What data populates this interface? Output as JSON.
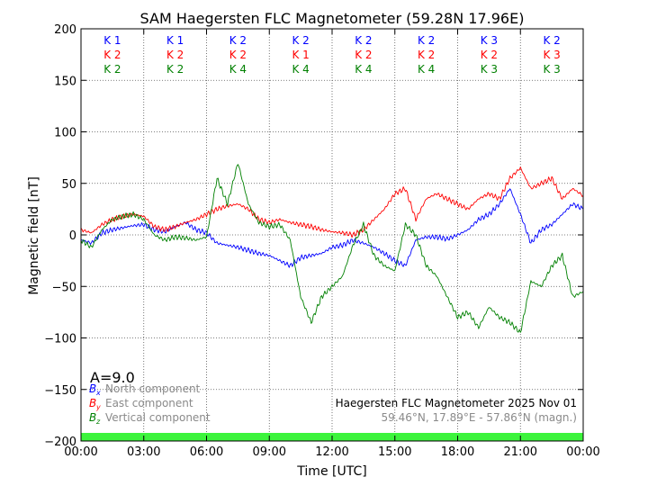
{
  "chart_data": {
    "type": "line",
    "title": "SAM Haegersten FLC Magnetometer (59.28N 17.96E)",
    "xlabel": "Time [UTC]",
    "ylabel": "Magnetic field [nT]",
    "xlim": [
      0,
      24
    ],
    "ylim": [
      -200,
      200
    ],
    "x_tick_labels": [
      "00:00",
      "03:00",
      "06:00",
      "09:00",
      "12:00",
      "15:00",
      "18:00",
      "21:00",
      "00:00"
    ],
    "y_tick_labels": [
      "200",
      "150",
      "100",
      "50",
      "0",
      "−50",
      "−100",
      "−150",
      "−200"
    ],
    "grid": true,
    "k_indices": {
      "labels_x": [
        "K 1",
        "K 1",
        "K 2",
        "K 2",
        "K 2",
        "K 2",
        "K 3",
        "K 2"
      ],
      "labels_y": [
        "K 2",
        "K 2",
        "K 2",
        "K 1",
        "K 2",
        "K 2",
        "K 2",
        "K 3"
      ],
      "labels_z": [
        "K 2",
        "K 2",
        "K 4",
        "K 4",
        "K 4",
        "K 4",
        "K 3",
        "K 3"
      ]
    },
    "a_index_label": "A=9.0",
    "legend": {
      "placement": "bottom-left",
      "entries": [
        {
          "symbol": "B",
          "sub": "x",
          "text": "North component"
        },
        {
          "symbol": "B",
          "sub": "y",
          "text": "East component"
        },
        {
          "symbol": "B",
          "sub": "z",
          "text": "Vertical component"
        }
      ]
    },
    "info_lines": [
      "Haegersten FLC Magnetometer 2025 Nov 01",
      "59.46°N, 17.89°E - 57.86°N (magn.)"
    ],
    "status_band": {
      "from": -200,
      "to": -192,
      "color": "#3cf43c"
    },
    "series": [
      {
        "name": "Bx North component",
        "color": "#0000ff",
        "x": [
          0,
          0.5,
          1,
          1.5,
          2,
          2.5,
          3,
          3.5,
          4,
          4.5,
          5,
          5.5,
          6,
          6.5,
          7,
          7.5,
          8,
          8.5,
          9,
          9.5,
          10,
          10.5,
          11,
          11.5,
          12,
          12.5,
          13,
          13.5,
          14,
          14.5,
          15,
          15.5,
          16,
          16.5,
          17,
          17.5,
          18,
          18.5,
          19,
          19.5,
          20,
          20.5,
          21,
          21.5,
          22,
          22.5,
          23,
          23.5,
          24
        ],
        "y": [
          -5,
          -8,
          2,
          5,
          7,
          9,
          10,
          5,
          3,
          8,
          12,
          5,
          2,
          -8,
          -10,
          -12,
          -15,
          -18,
          -20,
          -25,
          -30,
          -22,
          -20,
          -18,
          -12,
          -10,
          -5,
          -8,
          -12,
          -18,
          -25,
          -30,
          -5,
          -2,
          -2,
          -4,
          0,
          5,
          15,
          20,
          30,
          45,
          20,
          -8,
          5,
          10,
          20,
          30,
          25
        ]
      },
      {
        "name": "By East component",
        "color": "#ff0000",
        "x": [
          0,
          0.5,
          1,
          1.5,
          2,
          2.5,
          3,
          3.5,
          4,
          4.5,
          5,
          5.5,
          6,
          6.5,
          7,
          7.5,
          8,
          8.5,
          9,
          9.5,
          10,
          10.5,
          11,
          11.5,
          12,
          12.5,
          13,
          13.5,
          14,
          14.5,
          15,
          15.5,
          16,
          16.5,
          17,
          17.5,
          18,
          18.5,
          19,
          19.5,
          20,
          20.5,
          21,
          21.5,
          22,
          22.5,
          23,
          23.5,
          24
        ],
        "y": [
          5,
          2,
          10,
          15,
          18,
          20,
          18,
          8,
          5,
          8,
          12,
          15,
          20,
          25,
          28,
          30,
          25,
          15,
          12,
          15,
          12,
          10,
          8,
          5,
          3,
          2,
          0,
          5,
          15,
          25,
          40,
          45,
          15,
          35,
          40,
          35,
          30,
          25,
          35,
          40,
          35,
          55,
          65,
          45,
          50,
          55,
          35,
          45,
          38
        ]
      },
      {
        "name": "Bz Vertical component",
        "color": "#008000",
        "x": [
          0,
          0.5,
          1,
          1.5,
          2,
          2.5,
          3,
          3.5,
          4,
          4.5,
          5,
          5.5,
          6,
          6.5,
          7,
          7.5,
          8,
          8.5,
          9,
          9.5,
          10,
          10.5,
          11,
          11.5,
          12,
          12.5,
          13,
          13.5,
          14,
          14.5,
          15,
          15.5,
          16,
          16.5,
          17,
          17.5,
          18,
          18.5,
          19,
          19.5,
          20,
          20.5,
          21,
          21.5,
          22,
          22.5,
          23,
          23.5,
          24
        ],
        "y": [
          -5,
          -12,
          5,
          15,
          18,
          20,
          15,
          0,
          -5,
          -2,
          -3,
          -5,
          -2,
          55,
          30,
          70,
          30,
          12,
          8,
          10,
          -5,
          -60,
          -85,
          -60,
          -50,
          -40,
          -10,
          10,
          -20,
          -30,
          -35,
          10,
          0,
          -30,
          -40,
          -60,
          -80,
          -75,
          -90,
          -70,
          -80,
          -85,
          -95,
          -45,
          -50,
          -30,
          -20,
          -60,
          -55
        ]
      }
    ]
  }
}
